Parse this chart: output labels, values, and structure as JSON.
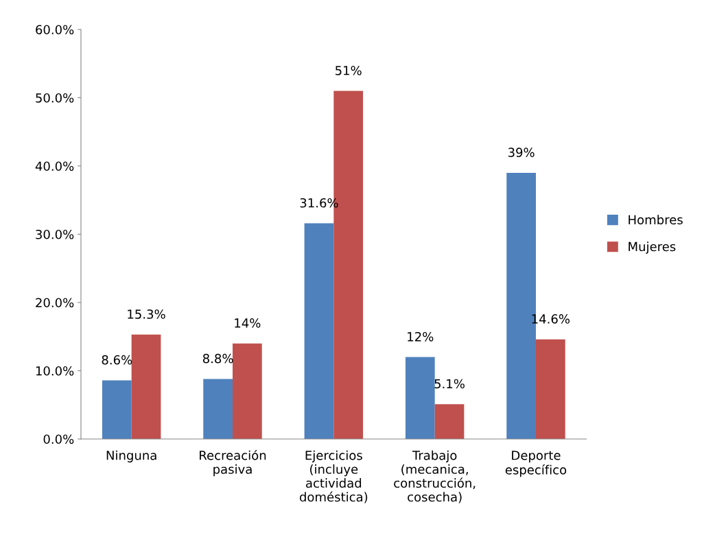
{
  "chart_data": {
    "type": "bar",
    "categories": [
      "Ninguna",
      "Recreación\npasiva",
      "Ejercicios\n(incluye\nactividad\ndoméstica)",
      "Trabajo\n(mecanica,\nconstrucción,\ncosecha)",
      "Deporte\nespecífico"
    ],
    "series": [
      {
        "name": "Hombres",
        "color": "#4f81bd",
        "values": [
          8.6,
          8.8,
          31.6,
          12,
          39
        ],
        "value_labels": [
          "8.6%",
          "8.8%",
          "31.6%",
          "12%",
          "39%"
        ]
      },
      {
        "name": "Mujeres",
        "color": "#c0504d",
        "values": [
          15.3,
          14,
          51,
          5.1,
          14.6
        ],
        "value_labels": [
          "15.3%",
          "14%",
          "51%",
          "5.1%",
          "14.6%"
        ]
      }
    ],
    "ylim": [
      0,
      60
    ],
    "yticks": [
      {
        "value": 0,
        "label": "0.0%"
      },
      {
        "value": 10,
        "label": "10.0%"
      },
      {
        "value": 20,
        "label": "20.0%"
      },
      {
        "value": 30,
        "label": "30.0%"
      },
      {
        "value": 40,
        "label": "40.0%"
      },
      {
        "value": 50,
        "label": "50.0%"
      },
      {
        "value": 60,
        "label": "60.0%"
      }
    ],
    "grid": false,
    "legend": "right"
  }
}
